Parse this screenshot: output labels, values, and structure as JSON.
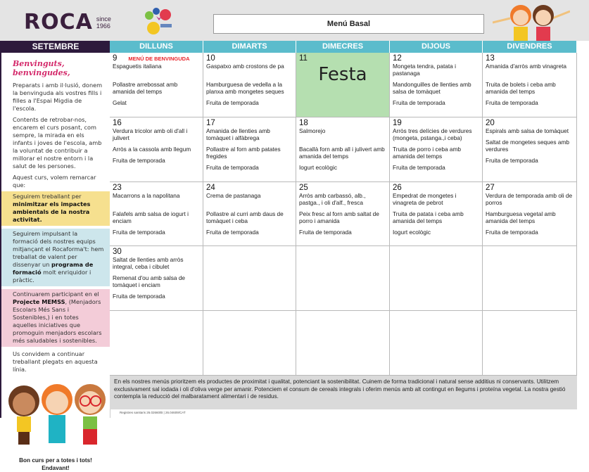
{
  "header": {
    "logo": "ROCA",
    "logo_since": "since",
    "logo_year": "1966",
    "title": "Menú Basal"
  },
  "sidebar": {
    "month": "SETEMBRE",
    "welcome": "Benvinguts, benvingudes,",
    "p1": "Preparats i amb il·lusió, donem la benvinguda als vostres fills i filles a l'Espai Migdia de  l'escola.",
    "p2": "Contents de retrobar-nos, encarem el curs posant, com sempre, la mirada en els infants i joves de l'escola, amb la voluntat de contribuir a millorar el nostre entorn i la salut de les persones.",
    "p3": "Aquest curs, volem remarcar que:",
    "y1": "Seguirem treballant per ",
    "y2": "minimitzar els impactes ambientals de la nostra activitat.",
    "b1": "Seguirem impulsant la formació dels nostres equips mitjançant el Rocaforma't: hem treballat de valent per dissenyar un ",
    "b2": "programa de formació",
    "b3": " molt enriquidor i pràctic.",
    "c1": "Continuarem participant en el ",
    "c2": "Projecte MEMSS",
    "c3": ", (Menjadors Escolars Més Sans i Sostenibles,) i en totes aquelles iniciatives que promoguin menjadors escolars més saludables i sostenibles.",
    "p4": "Us convidem a continuar treballant plegats  en aquesta línia.",
    "bye1": "Bon curs per a totes i tots!",
    "bye2": "Endavant!"
  },
  "days": [
    "DILLUNS",
    "DIMARTS",
    "DIMECRES",
    "DIJOUS",
    "DIVENDRES"
  ],
  "colors": {
    "month_bar": "#2d1a3c",
    "day_header": "#5bbccc",
    "holiday": "#b5dfb0",
    "welcome": "#d42a6b",
    "badge": "#e8252b"
  },
  "weeks": [
    [
      {
        "n": "9",
        "badge": "MENÚ DE BENVINGUDA",
        "d": [
          "Espaguetis italiana",
          "Pollastre arrebossat amb amanida del temps",
          "Gelat"
        ]
      },
      {
        "n": "10",
        "d": [
          "Gaspatxo amb crostons de pa",
          "Hamburguesa de vedella a la planxa amb mongetes seques",
          "Fruita de temporada"
        ]
      },
      {
        "n": "11",
        "holiday": "Festa",
        "d": []
      },
      {
        "n": "12",
        "d": [
          "Mongeta tendra, patata i pastanaga",
          "Mandonguilles de llenties amb salsa de tomàquet",
          "Fruita de temporada"
        ]
      },
      {
        "n": "13",
        "d": [
          "Amanida d'arròs amb vinagreta",
          "Truita de bolets i ceba amb amanida del temps",
          "Fruita de temporada"
        ]
      }
    ],
    [
      {
        "n": "16",
        "d": [
          "Verdura tricolor amb oli d'all i julivert",
          "Arròs a la cassola amb llegum",
          "Fruita de temporada"
        ]
      },
      {
        "n": "17",
        "d": [
          "Amanida de llenties amb tomàquet i alfàbrega",
          "Pollastre al forn amb patates fregides",
          "Fruita de temporada"
        ]
      },
      {
        "n": "18",
        "d": [
          "Salmorejo",
          "Bacallà forn amb all i julivert amb amanida del temps",
          "Iogurt ecològic"
        ]
      },
      {
        "n": "19",
        "d": [
          "Arròs tres delícies de verdures (mongeta, pstanga.,i ceba)",
          "Truita de porro i ceba amb amanida del temps",
          "Fruita de temporada"
        ]
      },
      {
        "n": "20",
        "d": [
          "Espirals amb salsa de tomàquet",
          "Saltat de mongetes seques amb verdures",
          "Fruita de temporada"
        ]
      }
    ],
    [
      {
        "n": "23",
        "d": [
          "Macarrons a la napolitana",
          "Falafels amb salsa de iogurt i enciam",
          "Fruita de temporada"
        ]
      },
      {
        "n": "24",
        "d": [
          " Crema de pastanaga",
          "Pollastre al curri amb daus de tomàquet i ceba",
          "Fruita de temporada"
        ]
      },
      {
        "n": "25",
        "d": [
          "Arròs amb carbassó, alb., pastga., i oli d'alf., fresca",
          "Peix fresc al forn amb saltat de porro i amanida",
          "Fruita de temporada"
        ]
      },
      {
        "n": "26",
        "d": [
          "Empedrat de mongetes i vinagreta de pebrot",
          "Truita de patata i ceba amb amanida del temps",
          "Iogurt ecològic"
        ]
      },
      {
        "n": "27",
        "d": [
          "Verdura de temporada amb oli de porros",
          "Hamburguesa vegetal amb amanida del temps",
          "Fruita de temporada"
        ]
      }
    ],
    [
      {
        "n": "30",
        "d": [
          "Saltat de llenties amb arròs integral, ceba i cibulet",
          "Remenat d'ou amb salsa de tomàquet i enciam",
          "Fruita de temporada"
        ]
      },
      {},
      {},
      {},
      {}
    ],
    [
      {},
      {},
      {},
      {},
      {}
    ]
  ],
  "footer": "En els nostres menús prioritzem els productes de proximitat i qualitat, potenciant la sostenibilitat. Cuinem de forma tradicional i natural sense additius ni conservants. Utilitzem exclusivament sal iodada i oli d'oliva verge per amanir. Potenciem el consum de cereals integrals i oferim menús amb alt contingut en llegums i proteïna vegetal. La nostra gestió contempla la reducció del malbaratament alimentari i de residus.",
  "registry": "Registres sanitaris 26.02660/B | 26.04609/CAT"
}
